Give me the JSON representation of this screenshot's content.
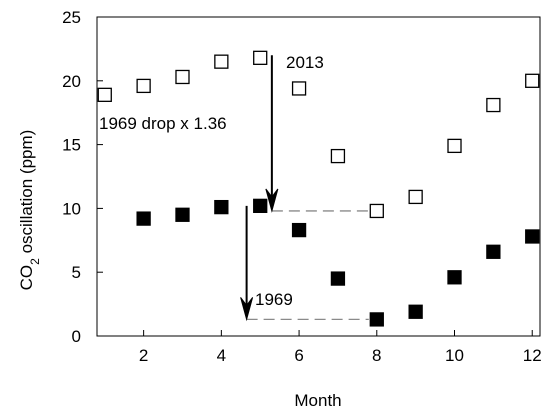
{
  "chart_data": {
    "type": "scatter",
    "xlabel": "Month",
    "ylabel": {
      "prefix": "CO",
      "subscript": "2",
      "suffix": " oscillation (ppm)"
    },
    "xlim": [
      0.8,
      12.2
    ],
    "ylim": [
      0,
      25
    ],
    "xticks": [
      2,
      4,
      6,
      8,
      10,
      12
    ],
    "yticks": [
      0,
      5,
      10,
      15,
      20,
      25
    ],
    "grid": false,
    "series": [
      {
        "marker": "square-open",
        "color": "#000000",
        "points": [
          {
            "x": 1,
            "y": 18.9
          },
          {
            "x": 2,
            "y": 19.6
          },
          {
            "x": 3,
            "y": 20.3
          },
          {
            "x": 4,
            "y": 21.5
          },
          {
            "x": 5,
            "y": 21.8
          },
          {
            "x": 6,
            "y": 19.4
          },
          {
            "x": 7,
            "y": 14.1
          },
          {
            "x": 8,
            "y": 9.8
          },
          {
            "x": 9,
            "y": 10.9
          },
          {
            "x": 10,
            "y": 14.9
          },
          {
            "x": 11,
            "y": 18.1
          },
          {
            "x": 12,
            "y": 20.0
          }
        ]
      },
      {
        "marker": "square-filled",
        "color": "#000000",
        "points": [
          {
            "x": 2,
            "y": 9.2
          },
          {
            "x": 3,
            "y": 9.5
          },
          {
            "x": 4,
            "y": 10.1
          },
          {
            "x": 5,
            "y": 10.2
          },
          {
            "x": 6,
            "y": 8.3
          },
          {
            "x": 7,
            "y": 4.5
          },
          {
            "x": 8,
            "y": 1.3
          },
          {
            "x": 9,
            "y": 1.9
          },
          {
            "x": 10,
            "y": 4.6
          },
          {
            "x": 11,
            "y": 6.6
          },
          {
            "x": 12,
            "y": 7.8
          }
        ]
      }
    ],
    "annotations": [
      {
        "label": "2013",
        "arrow": {
          "x": 5.3,
          "y_from": 22.0,
          "y_to": 9.8
        },
        "dashed": {
          "x_from": 5.3,
          "x_to": 8,
          "y": 9.8
        }
      },
      {
        "label": "1969",
        "arrow": {
          "x": 4.65,
          "y_from": 10.2,
          "y_to": 1.3
        },
        "dashed": {
          "x_from": 4.65,
          "x_to": 8,
          "y": 1.3
        }
      },
      {
        "label": "1969 drop x 1.36"
      }
    ]
  }
}
